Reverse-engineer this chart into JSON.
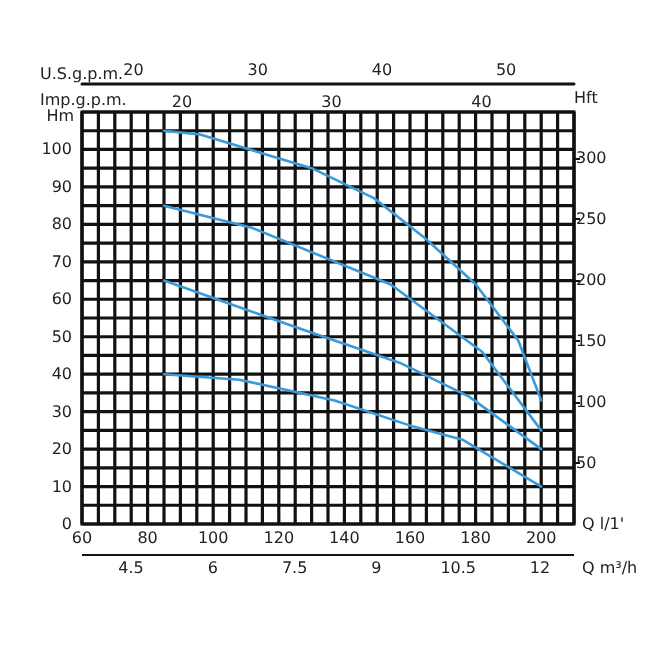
{
  "chart_data": {
    "type": "line",
    "xlabel": "Q l/1'",
    "ylabel": "Hm",
    "y2label": "Hft",
    "x2label": "U.S.g.p.m.",
    "xlim": [
      60,
      210
    ],
    "xticks": [
      60,
      {
        "value": 65,
        "label": null
      },
      {
        "value": 70,
        "label": null
      },
      {
        "value": 75,
        "label": null
      },
      80,
      {
        "value": 85,
        "label": null
      },
      {
        "value": 90,
        "label": null
      },
      {
        "value": 95,
        "label": null
      },
      100,
      {
        "value": 105,
        "label": null
      },
      {
        "value": 110,
        "label": null
      },
      {
        "value": 115,
        "label": null
      },
      120,
      {
        "value": 125,
        "label": null
      },
      {
        "value": 130,
        "label": null
      },
      {
        "value": 135,
        "label": null
      },
      140,
      {
        "value": 145,
        "label": null
      },
      {
        "value": 150,
        "label": null
      },
      {
        "value": 155,
        "label": null
      },
      160,
      {
        "value": 165,
        "label": null
      },
      {
        "value": 170,
        "label": null
      },
      {
        "value": 175,
        "label": null
      },
      180,
      {
        "value": 185,
        "label": null
      },
      {
        "value": 190,
        "label": null
      },
      {
        "value": 195,
        "label": null
      },
      200,
      {
        "value": 205,
        "label": null
      },
      {
        "value": 210,
        "label": null
      }
    ],
    "ylim": [
      0,
      110
    ],
    "yticks": [
      0,
      {
        "value": 5,
        "label": null
      },
      10,
      {
        "value": 15,
        "label": null
      },
      20,
      {
        "value": 25,
        "label": null
      },
      30,
      {
        "value": 35,
        "label": null
      },
      40,
      {
        "value": 45,
        "label": null
      },
      50,
      {
        "value": 55,
        "label": null
      },
      60,
      {
        "value": 65,
        "label": null
      },
      70,
      {
        "value": 75,
        "label": null
      },
      80,
      {
        "value": 85,
        "label": null
      },
      90,
      {
        "value": 95,
        "label": null
      },
      100,
      {
        "value": 105,
        "label": null
      },
      {
        "value": 110,
        "label": null
      }
    ],
    "y2lim": [
      0,
      338
    ],
    "y2ticks": [
      50,
      100,
      150,
      200,
      250,
      300
    ],
    "x2lim": [
      15.85,
      55.47
    ],
    "x2ticks": [
      20,
      30,
      40,
      50
    ],
    "grid": true,
    "marker": "none",
    "line_style": "solid",
    "annotations": [
      "Imp.g.p.m.",
      "20",
      "30",
      "40",
      "Q m³/h",
      "4.5",
      "6",
      "7.5",
      "9",
      "10.5",
      "12"
    ],
    "series": [
      {
        "color": "#3a9ad9",
        "x": [
          85,
          96,
          130,
          149,
          165,
          180,
          193,
          200
        ],
        "values": [
          105,
          104,
          95,
          87,
          76,
          64,
          49,
          33
        ]
      },
      {
        "color": "#3a9ad9",
        "x": [
          85,
          112,
          154,
          182,
          200
        ],
        "values": [
          85,
          79,
          64,
          46,
          25
        ]
      },
      {
        "color": "#3a9ad9",
        "x": [
          85,
          127,
          157,
          178,
          200
        ],
        "values": [
          65,
          52,
          43,
          34,
          20
        ]
      },
      {
        "color": "#3a9ad9",
        "x": [
          85,
          108,
          137,
          161,
          176,
          200
        ],
        "values": [
          40,
          38.5,
          33,
          26,
          22.5,
          10
        ]
      }
    ]
  }
}
